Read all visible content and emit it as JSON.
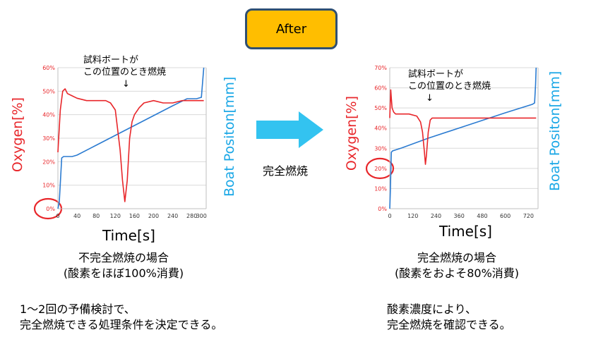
{
  "header": {
    "badge_label": "After"
  },
  "arrow": {
    "label": "完全燃焼",
    "color": "#33c3f0"
  },
  "colors": {
    "oxygen": "#e8262a",
    "position": "#2b7bd1",
    "accent_blue": "#1aa7e6",
    "badge": "#ffbe00"
  },
  "left": {
    "annotation_line1": "試料ボートが",
    "annotation_line2": "この位置のとき燃焼",
    "annotation_arrow": "↓",
    "caption_line1": "不完全燃焼の場合",
    "caption_line2": "(酸素をほぼ100%消費)",
    "note_line1": "1～2回の予備検討で、",
    "note_line2": "完全燃焼できる処理条件を決定できる。"
  },
  "right": {
    "annotation_line1": "試料ボートが",
    "annotation_line2": "この位置のとき燃焼",
    "annotation_arrow": "↓",
    "caption_line1": "完全燃焼の場合",
    "caption_line2": "(酸素をおよそ80%消費)",
    "note_line1": "酸素濃度により、",
    "note_line2": "完全燃焼を確認できる。"
  },
  "chart_data": [
    {
      "type": "line",
      "ylabel": "Oxygen[%]",
      "y2label": "Boat Positon[mm]",
      "xlabel": "Time[s]",
      "xlim": [
        0,
        310
      ],
      "ylim": [
        0,
        60
      ],
      "x_ticks": [
        "0",
        "40",
        "80",
        "120",
        "160",
        "200",
        "240",
        "280",
        "300"
      ],
      "x_tick_values": [
        0,
        40,
        80,
        120,
        160,
        200,
        240,
        280,
        300
      ],
      "y_ticks": [
        "0%",
        "10%",
        "20%",
        "30%",
        "40%",
        "50%",
        "60%"
      ],
      "y_tick_values": [
        0,
        10,
        20,
        30,
        40,
        50,
        60
      ],
      "highlight": "0%",
      "series": [
        {
          "name": "Oxygen",
          "x": [
            0,
            5,
            10,
            15,
            20,
            30,
            40,
            60,
            80,
            100,
            110,
            120,
            130,
            135,
            140,
            145,
            150,
            155,
            160,
            170,
            180,
            200,
            220,
            240,
            260,
            280,
            300,
            305
          ],
          "y": [
            24,
            42,
            50,
            51,
            49,
            48,
            47,
            46,
            46,
            46,
            45,
            42,
            25,
            12,
            3,
            12,
            30,
            37,
            40,
            43,
            45,
            46,
            45,
            45,
            46,
            46,
            46,
            46
          ]
        },
        {
          "name": "Boat Position",
          "x": [
            0,
            3,
            8,
            12,
            20,
            30,
            40,
            80,
            120,
            160,
            200,
            240,
            270,
            290,
            300,
            303,
            305
          ],
          "y_rel": [
            0.0,
            0.05,
            0.36,
            0.37,
            0.37,
            0.37,
            0.38,
            0.45,
            0.52,
            0.59,
            0.66,
            0.73,
            0.78,
            0.78,
            0.79,
            0.92,
            1.0
          ]
        }
      ]
    },
    {
      "type": "line",
      "ylabel": "Oxygen[%]",
      "y2label": "Boat Positon[mm]",
      "xlabel": "Time[s]",
      "xlim": [
        0,
        770
      ],
      "ylim": [
        0,
        70
      ],
      "x_ticks": [
        "0",
        "120",
        "240",
        "360",
        "480",
        "600",
        "720"
      ],
      "x_tick_values": [
        0,
        120,
        240,
        360,
        480,
        600,
        720
      ],
      "y_ticks": [
        "0%",
        "10%",
        "20%",
        "30%",
        "40%",
        "50%",
        "60%",
        "70%"
      ],
      "y_tick_values": [
        0,
        10,
        20,
        30,
        40,
        50,
        60,
        70
      ],
      "highlight": "20%",
      "series": [
        {
          "name": "Oxygen",
          "x": [
            0,
            5,
            8,
            12,
            20,
            30,
            60,
            100,
            140,
            160,
            170,
            180,
            185,
            190,
            200,
            210,
            220,
            240,
            300,
            400,
            500,
            600,
            700,
            760
          ],
          "y": [
            45,
            59,
            55,
            50,
            48,
            47,
            47,
            47,
            46,
            43,
            38,
            28,
            22,
            26,
            38,
            44,
            45,
            45,
            45,
            45,
            45,
            45,
            45,
            45
          ]
        },
        {
          "name": "Boat Position",
          "x": [
            0,
            3,
            8,
            15,
            60,
            200,
            400,
            600,
            740,
            752,
            757,
            760
          ],
          "y_rel": [
            0.0,
            0.12,
            0.4,
            0.41,
            0.43,
            0.5,
            0.59,
            0.68,
            0.74,
            0.75,
            0.88,
            1.0
          ]
        }
      ]
    }
  ]
}
